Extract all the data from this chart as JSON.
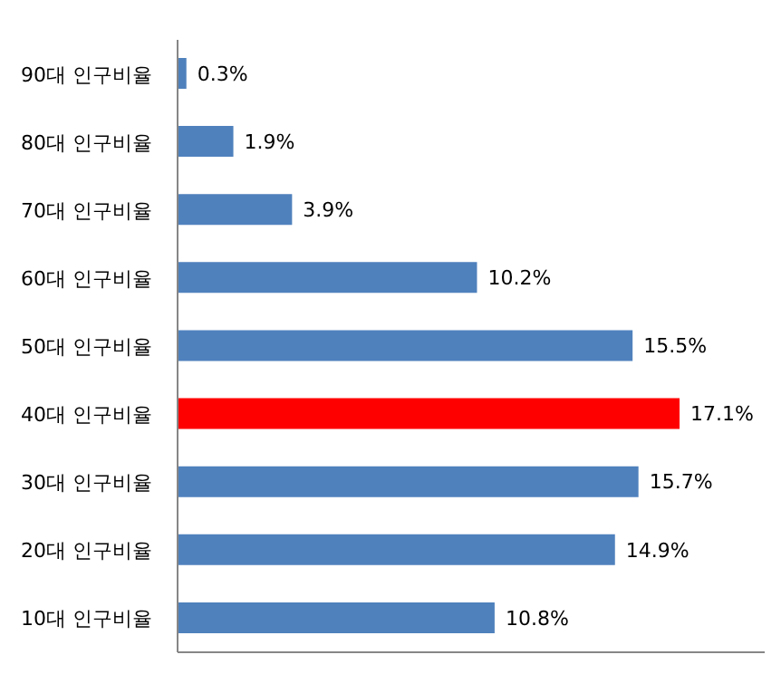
{
  "chart_data": {
    "type": "bar",
    "orientation": "horizontal",
    "categories": [
      "90대 인구비율",
      "80대 인구비율",
      "70대 인구비율",
      "60대 인구비율",
      "50대 인구비율",
      "40대 인구비율",
      "30대 인구비율",
      "20대 인구비율",
      "10대 인구비율"
    ],
    "values": [
      0.3,
      1.9,
      3.9,
      10.2,
      15.5,
      17.1,
      15.7,
      14.9,
      10.8
    ],
    "value_labels": [
      "0.3%",
      "1.9%",
      "3.9%",
      "10.2%",
      "15.5%",
      "17.1%",
      "15.7%",
      "14.9%",
      "10.8%"
    ],
    "colors": [
      "#4f81bd",
      "#4f81bd",
      "#4f81bd",
      "#4f81bd",
      "#4f81bd",
      "#ff0000",
      "#4f81bd",
      "#4f81bd",
      "#4f81bd"
    ],
    "tick_labels": "y",
    "grid": false
  }
}
